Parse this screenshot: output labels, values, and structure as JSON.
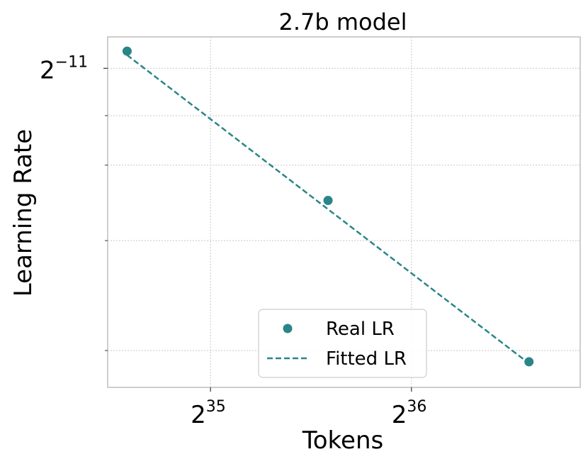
{
  "chart_data": {
    "type": "scatter",
    "title": "2.7b model",
    "xlabel": "Tokens",
    "ylabel": "Learning Rate",
    "x_scale": "log2",
    "y_scale": "log2",
    "xlim": [
      24100000000,
      123000000000
    ],
    "ylim": [
      0.000163,
      0.000544
    ],
    "x_ticks": [
      {
        "value": 34359738368,
        "base": "2",
        "exp": "35"
      },
      {
        "value": 68719476736,
        "base": "2",
        "exp": "36"
      }
    ],
    "y_ticks": [
      {
        "value": 0.00048828125,
        "base": "2",
        "exp": "−11"
      }
    ],
    "y_minor_ticks": [
      0.000185,
      0.00027,
      0.00035,
      0.000415
    ],
    "grid": true,
    "legend_position": "lower-center",
    "series": [
      {
        "name": "Real LR",
        "kind": "scatter",
        "color": "#2a8588",
        "x": [
          25769803776,
          51539607552,
          103079215104
        ],
        "y": [
          0.000518,
          0.00031,
          0.000178
        ]
      },
      {
        "name": "Fitted LR",
        "kind": "line",
        "style": "dashed",
        "color": "#2a8588",
        "x": [
          25769803776,
          103079215104
        ],
        "y": [
          0.000511,
          0.000177
        ]
      }
    ]
  }
}
